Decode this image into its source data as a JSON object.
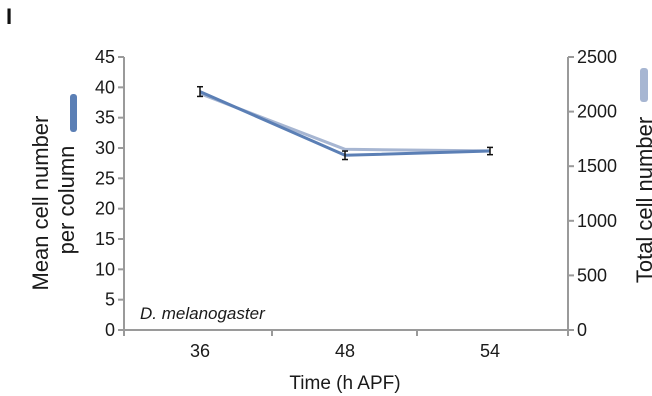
{
  "panel_label": "I",
  "chart_data": {
    "type": "line",
    "categories": [
      "36",
      "48",
      "54"
    ],
    "xlabel": "Time (h APF)",
    "ylabel_left": "Mean cell number per column",
    "ylabel_left_lines": [
      "Mean cell number",
      "per column"
    ],
    "ylabel_right": "Total cell number",
    "ylim_left": [
      0,
      45
    ],
    "yticks_left": [
      "0",
      "5",
      "10",
      "15",
      "20",
      "25",
      "30",
      "35",
      "40",
      "45"
    ],
    "ylim_right": [
      0,
      2500
    ],
    "yticks_right": [
      "0",
      "500",
      "1000",
      "1500",
      "2000",
      "2500"
    ],
    "annotation": "D. melanogaster",
    "grid": false,
    "series": [
      {
        "axis": "left",
        "color": "#5b7fb5",
        "values": [
          39.3,
          28.8,
          29.5
        ],
        "errors": [
          0.8,
          0.7,
          0.6
        ]
      },
      {
        "axis": "right",
        "color": "#a7b6d2",
        "values": [
          2165,
          1655,
          1640
        ],
        "errors": [
          0,
          0,
          0
        ]
      }
    ]
  }
}
